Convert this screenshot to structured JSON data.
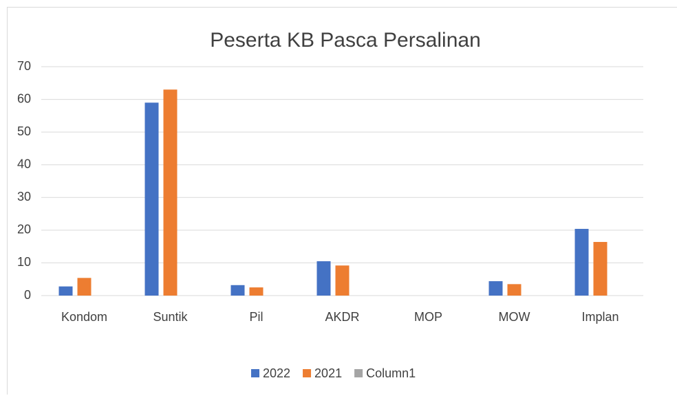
{
  "chart_data": {
    "type": "bar",
    "title": "Peserta KB Pasca Persalinan",
    "categories": [
      "Kondom",
      "Suntik",
      "Pil",
      "AKDR",
      "MOP",
      "MOW",
      "Implan"
    ],
    "series": [
      {
        "name": "2022",
        "color": "#4472c4",
        "values": [
          2.8,
          59,
          3.2,
          10.5,
          0,
          4.4,
          20.4
        ]
      },
      {
        "name": "2021",
        "color": "#ed7d31",
        "values": [
          5.4,
          63,
          2.5,
          9.2,
          0,
          3.5,
          16.4
        ]
      },
      {
        "name": "Column1",
        "color": "#a5a5a5",
        "values": [
          null,
          null,
          null,
          null,
          null,
          null,
          null
        ]
      }
    ],
    "ylim": [
      0,
      70
    ],
    "yticks": [
      0,
      10,
      20,
      30,
      40,
      50,
      60,
      70
    ],
    "grid": true,
    "legend": "bottom"
  }
}
